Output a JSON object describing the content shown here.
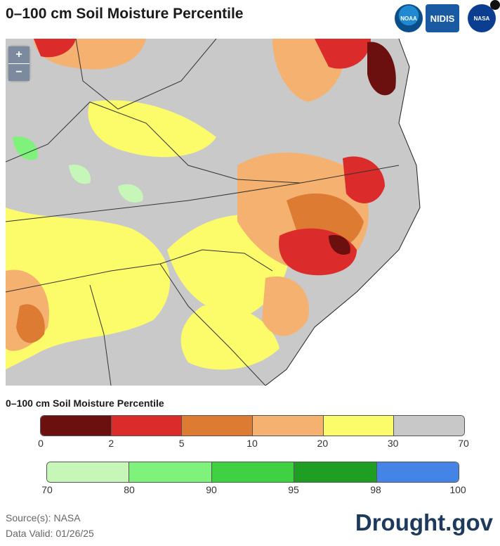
{
  "title": "0–100 cm Soil Moisture Percentile",
  "logos": {
    "noaa": "NOAA",
    "nidis": "NIDIS",
    "nasa": "NASA"
  },
  "zoom": {
    "in": "+",
    "out": "−"
  },
  "legend": {
    "title": "0–100 cm Soil Moisture Percentile",
    "dry_bins": [
      {
        "color": "#6b0f0f"
      },
      {
        "color": "#dc2b2b"
      },
      {
        "color": "#dd7b33"
      },
      {
        "color": "#f5b16f"
      },
      {
        "color": "#fcfc6a"
      },
      {
        "color": "#c8c8c8"
      }
    ],
    "dry_ticks": [
      "0",
      "2",
      "5",
      "10",
      "20",
      "30",
      "70"
    ],
    "wet_bins": [
      {
        "color": "#c6f7b8"
      },
      {
        "color": "#7ef27a"
      },
      {
        "color": "#3fd142"
      },
      {
        "color": "#1f9e24"
      },
      {
        "color": "#4484e6"
      }
    ],
    "wet_ticks": [
      "70",
      "80",
      "90",
      "95",
      "98",
      "100"
    ]
  },
  "source": "Source(s): NASA",
  "valid": "Data Valid: 01/26/25",
  "brand": "Drought.gov"
}
